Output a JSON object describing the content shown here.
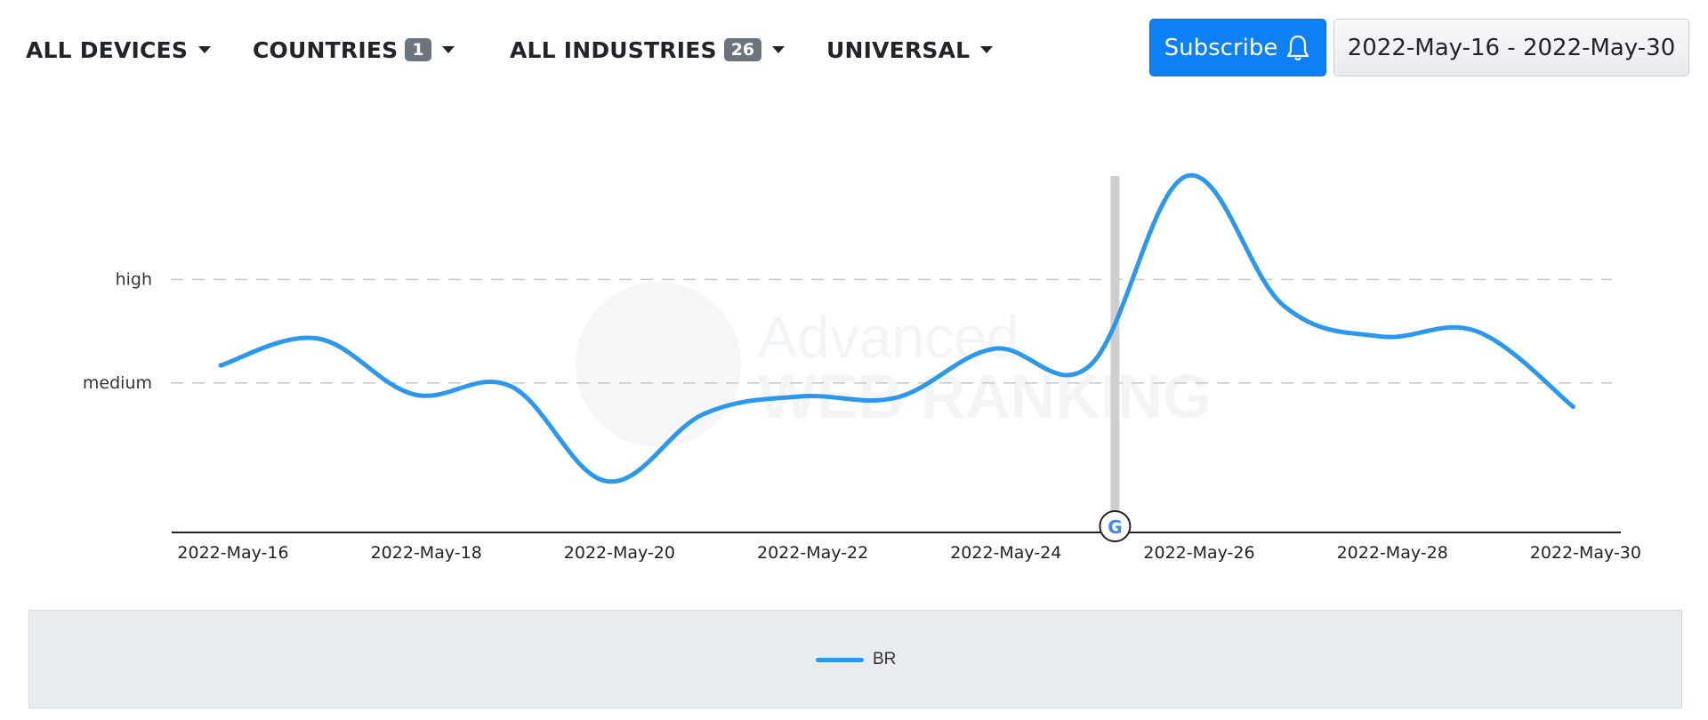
{
  "filters": {
    "devices": {
      "label": "ALL DEVICES"
    },
    "countries": {
      "label": "COUNTRIES",
      "count": "1"
    },
    "industries": {
      "label": "ALL INDUSTRIES",
      "count": "26"
    },
    "universal": {
      "label": "UNIVERSAL"
    }
  },
  "subscribe": {
    "label": "Subscribe",
    "icon": "bell-icon"
  },
  "date_range": {
    "label": "2022-May-16 - 2022-May-30"
  },
  "watermark": {
    "line1": "Advanced",
    "line2": "WEB RANKING"
  },
  "update_marker": {
    "icon": "google-icon",
    "date": "2022-May-25"
  },
  "colors": {
    "series": "#2b98ed",
    "accent": "#0d80f5"
  },
  "chart_data": {
    "type": "line",
    "x": [
      "2022-May-16",
      "2022-May-17",
      "2022-May-18",
      "2022-May-19",
      "2022-May-20",
      "2022-May-21",
      "2022-May-22",
      "2022-May-23",
      "2022-May-24",
      "2022-May-25",
      "2022-May-26",
      "2022-May-27",
      "2022-May-28",
      "2022-May-29",
      "2022-May-30"
    ],
    "x_tick_labels": [
      "2022-May-16",
      "2022-May-18",
      "2022-May-20",
      "2022-May-22",
      "2022-May-24",
      "2022-May-26",
      "2022-May-28",
      "2022-May-30"
    ],
    "y_tick_labels": [
      "medium",
      "high"
    ],
    "ylim": [
      0.0,
      3.35
    ],
    "y_tick_values": [
      1.35,
      2.35
    ],
    "series": [
      {
        "name": "BR",
        "values": [
          1.52,
          1.78,
          1.24,
          1.32,
          0.4,
          1.05,
          1.22,
          1.21,
          1.68,
          1.52,
          3.35,
          2.1,
          1.8,
          1.85,
          1.12
        ]
      }
    ],
    "grid": true,
    "legend": "bottom-center"
  }
}
